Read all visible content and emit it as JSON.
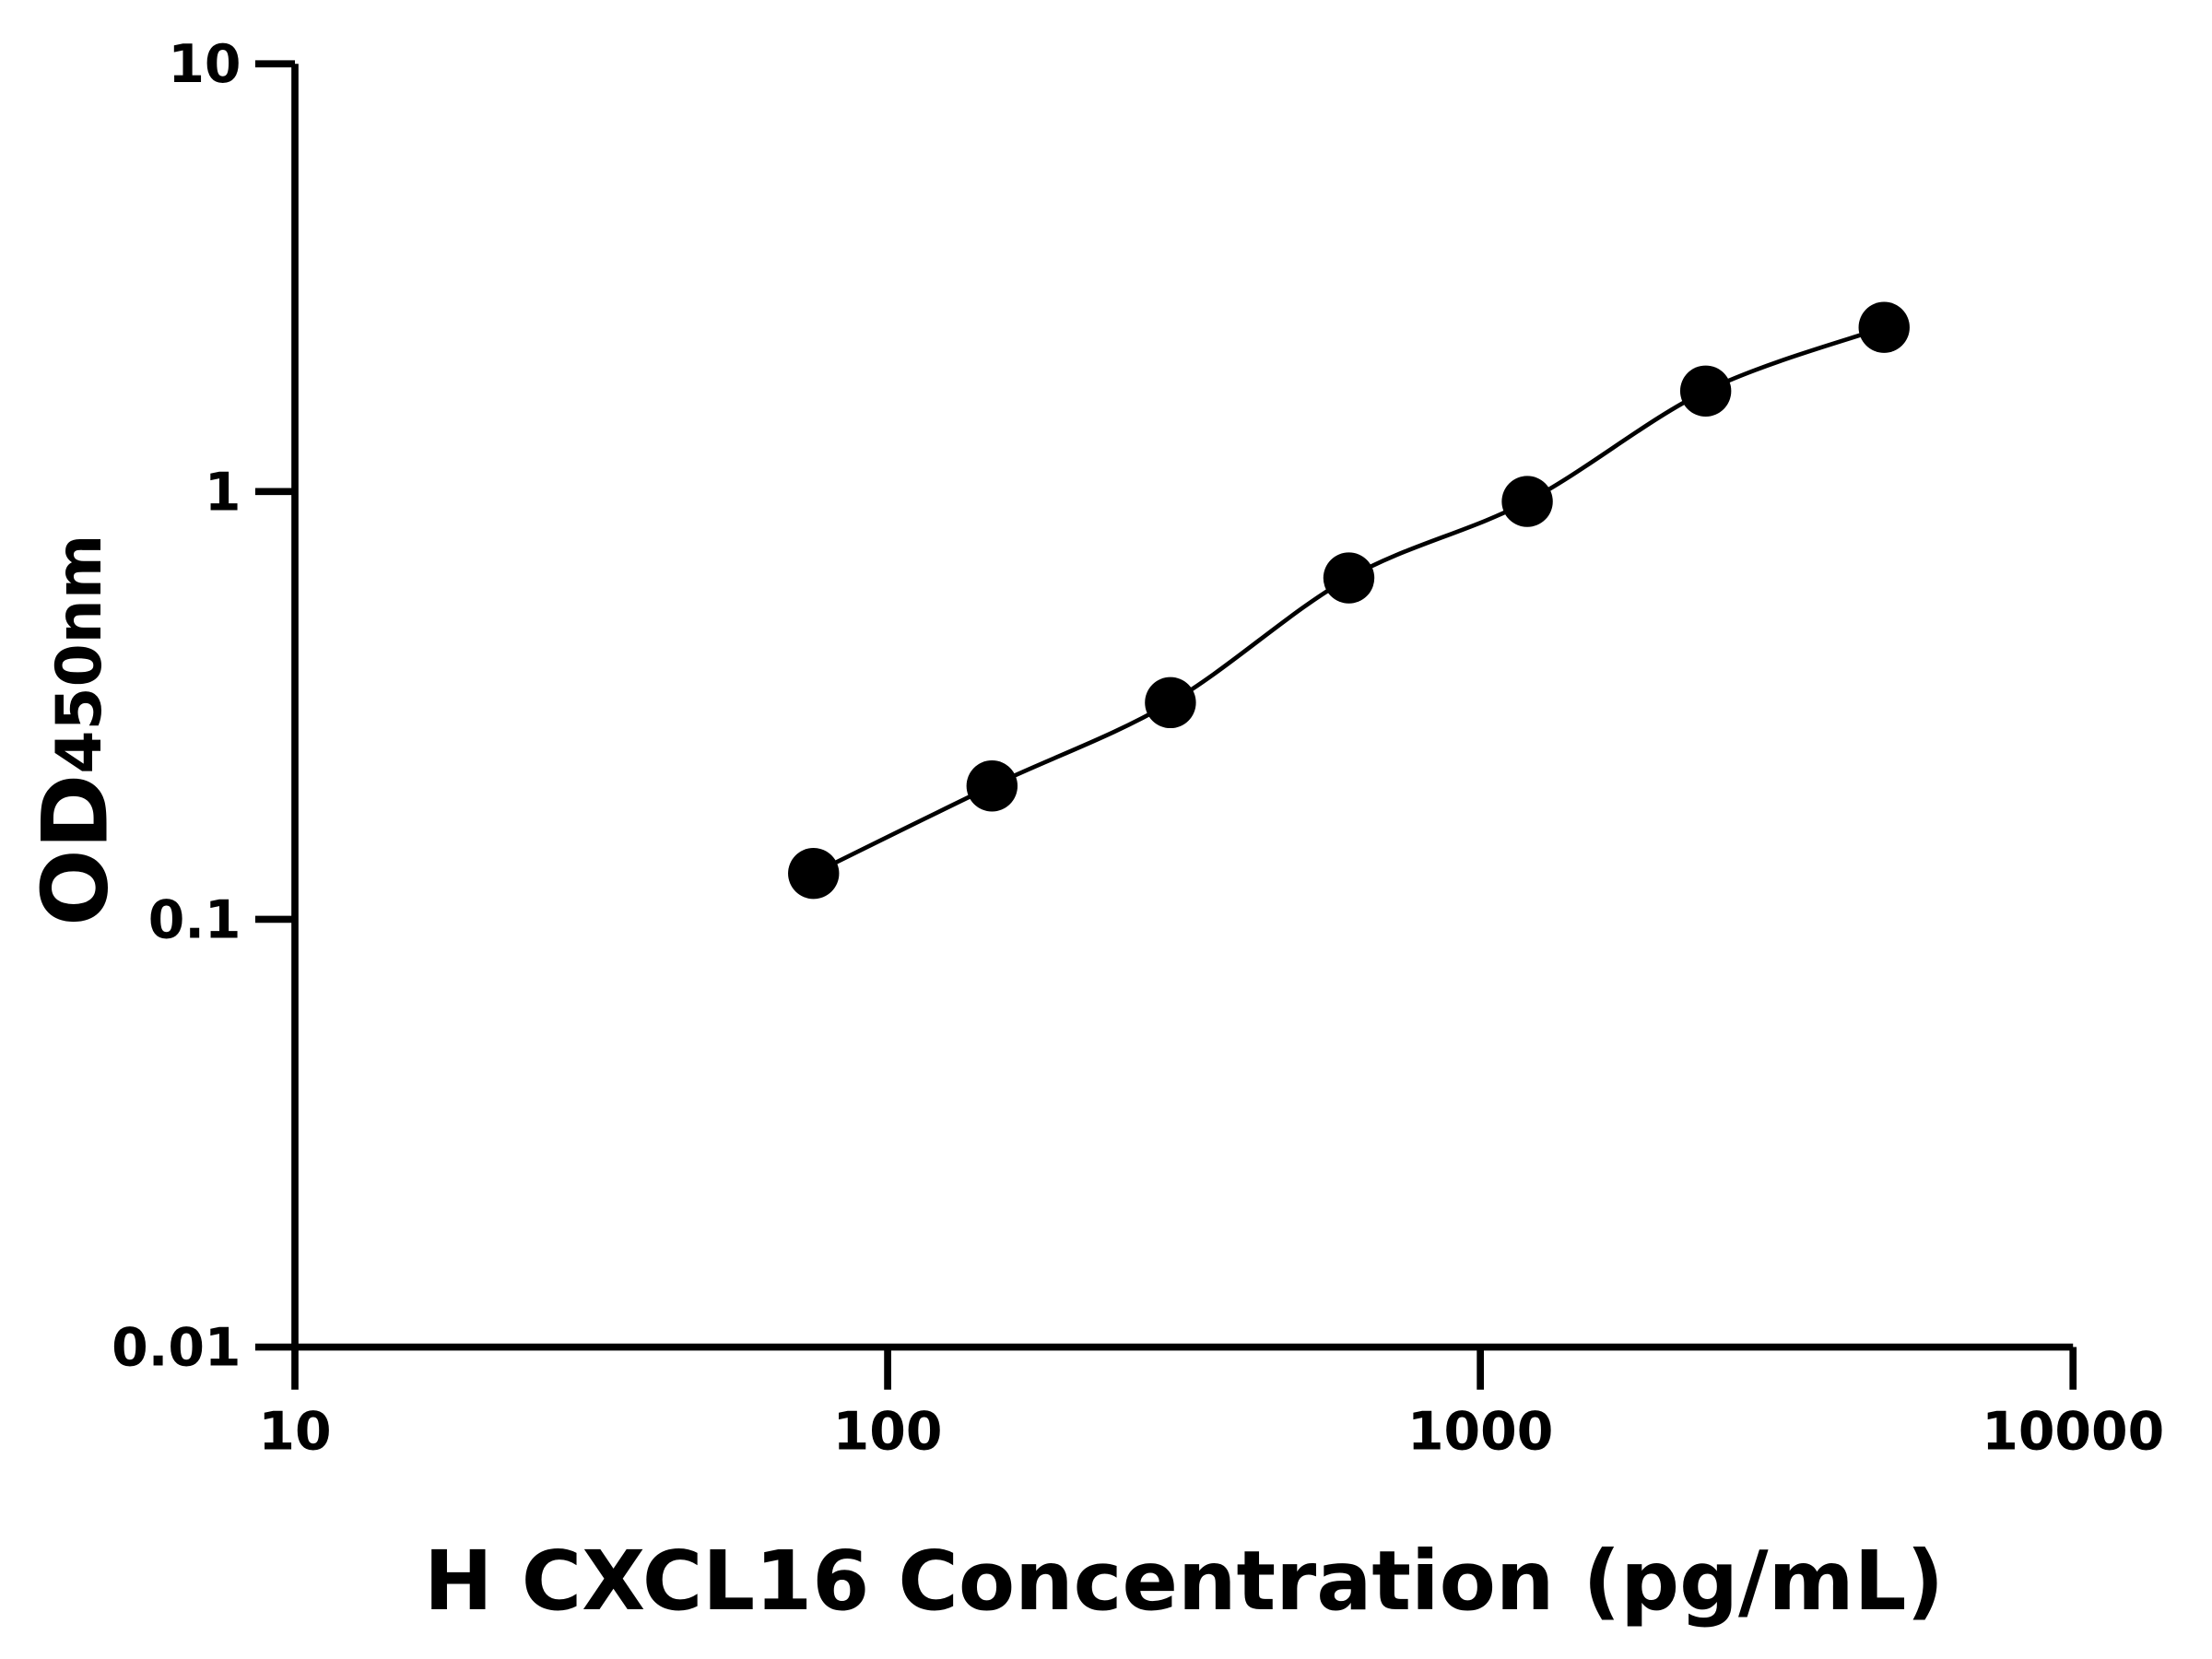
{
  "chart_data": {
    "type": "scatter",
    "xlabel": "H CXCL16 Concentration (pg/mL)",
    "ylabel": "OD",
    "ylabel_subscript": "450nm",
    "x": [
      75,
      150,
      300,
      600,
      1200,
      2400,
      4800
    ],
    "series": [
      {
        "color": "#000000",
        "values": [
          0.128,
          0.205,
          0.321,
          0.628,
          0.948,
          1.718,
          2.42
        ]
      }
    ],
    "xlim": [
      10,
      10000
    ],
    "xticks": [
      10,
      100,
      1000,
      10000
    ],
    "ylim": [
      0.01,
      10
    ],
    "yticks": [
      0.01,
      0.1,
      1,
      10
    ],
    "xscale": "log",
    "yscale": "log",
    "fit_curve": true,
    "grid": false
  }
}
